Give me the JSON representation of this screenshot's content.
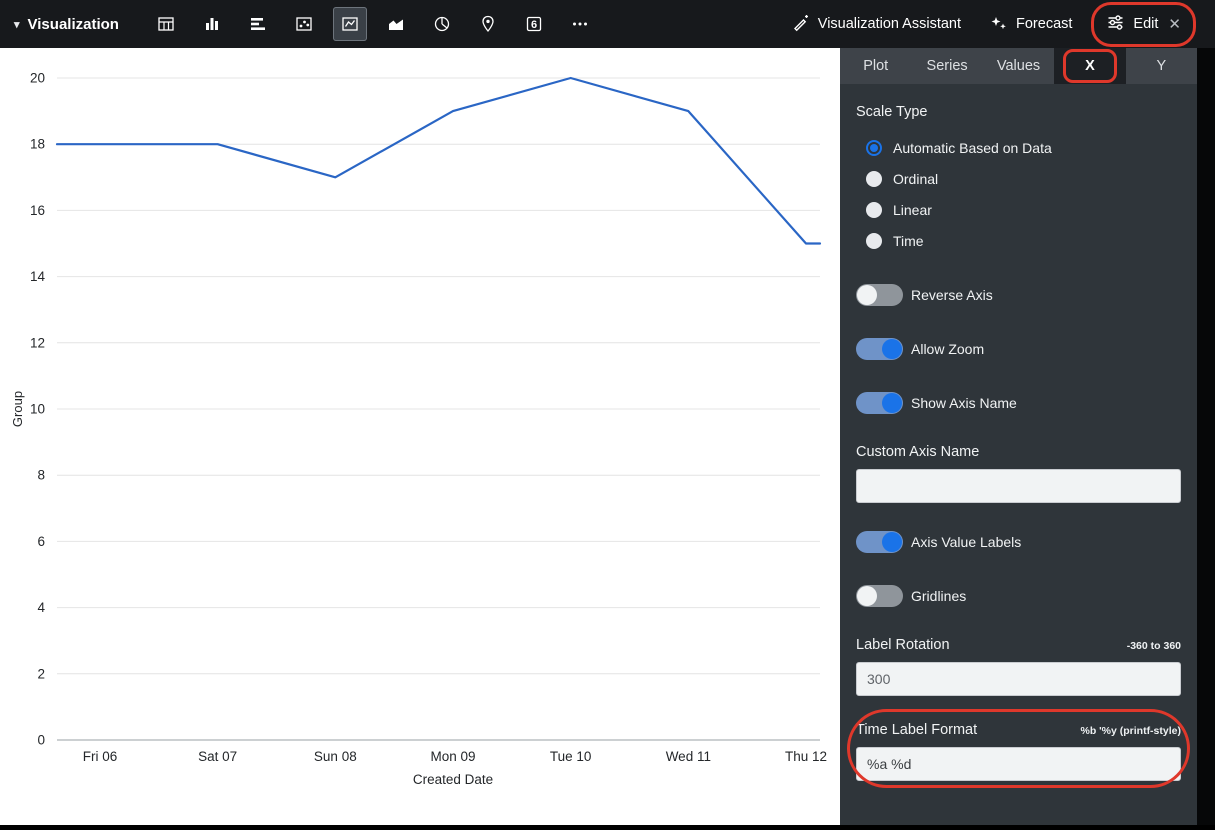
{
  "toolbar": {
    "title": "Visualization",
    "viz_types": [
      {
        "name": "table",
        "selected": false
      },
      {
        "name": "column-chart",
        "selected": false
      },
      {
        "name": "bar-chart",
        "selected": false
      },
      {
        "name": "scatter",
        "selected": false
      },
      {
        "name": "line-chart",
        "selected": true
      },
      {
        "name": "area-chart",
        "selected": false
      },
      {
        "name": "pie-chart",
        "selected": false
      },
      {
        "name": "map",
        "selected": false
      },
      {
        "name": "single-value",
        "selected": false,
        "glyph": "6"
      },
      {
        "name": "more",
        "selected": false
      }
    ],
    "assistant_label": "Visualization Assistant",
    "forecast_label": "Forecast",
    "edit_label": "Edit"
  },
  "chart_data": {
    "type": "line",
    "categories": [
      "Fri 06",
      "Sat 07",
      "Sun 08",
      "Mon 09",
      "Tue 10",
      "Wed 11",
      "Thu 12"
    ],
    "values": [
      18,
      18,
      17,
      19,
      20,
      19,
      15
    ],
    "xlabel": "Created Date",
    "ylabel": "Group",
    "ylim": [
      0,
      20
    ],
    "ytick_step": 2,
    "grid": "horizontal",
    "legend": "none",
    "line_color": "#2a66c5"
  },
  "panel": {
    "tabs": [
      {
        "label": "Plot",
        "active": false,
        "annotated": false
      },
      {
        "label": "Series",
        "active": false,
        "annotated": false
      },
      {
        "label": "Values",
        "active": false,
        "annotated": false
      },
      {
        "label": "X",
        "active": true,
        "annotated": true
      },
      {
        "label": "Y",
        "active": false,
        "annotated": false
      }
    ],
    "controls": [
      {
        "type": "heading",
        "label": "Scale Type"
      },
      {
        "type": "radio",
        "label": "Automatic Based on Data",
        "selected": true
      },
      {
        "type": "radio",
        "label": "Ordinal",
        "selected": false
      },
      {
        "type": "radio",
        "label": "Linear",
        "selected": false
      },
      {
        "type": "radio",
        "label": "Time",
        "selected": false
      },
      {
        "type": "toggle",
        "label": "Reverse Axis",
        "on": false
      },
      {
        "type": "toggle",
        "label": "Allow Zoom",
        "on": true
      },
      {
        "type": "toggle",
        "label": "Show Axis Name",
        "on": true
      },
      {
        "type": "field",
        "label": "Custom Axis Name",
        "hint": "",
        "value": "",
        "muted": false,
        "annotated": false
      },
      {
        "type": "toggle",
        "label": "Axis Value Labels",
        "on": true
      },
      {
        "type": "toggle",
        "label": "Gridlines",
        "on": false
      },
      {
        "type": "field",
        "label": "Label Rotation",
        "hint": "-360 to 360",
        "value": "300",
        "muted": true,
        "annotated": false
      },
      {
        "type": "field",
        "label": "Time Label Format",
        "hint": "%b '%y (printf-style)",
        "value": "%a %d",
        "muted": false,
        "annotated": true
      }
    ]
  },
  "annotations": {
    "color": "#df382b"
  }
}
